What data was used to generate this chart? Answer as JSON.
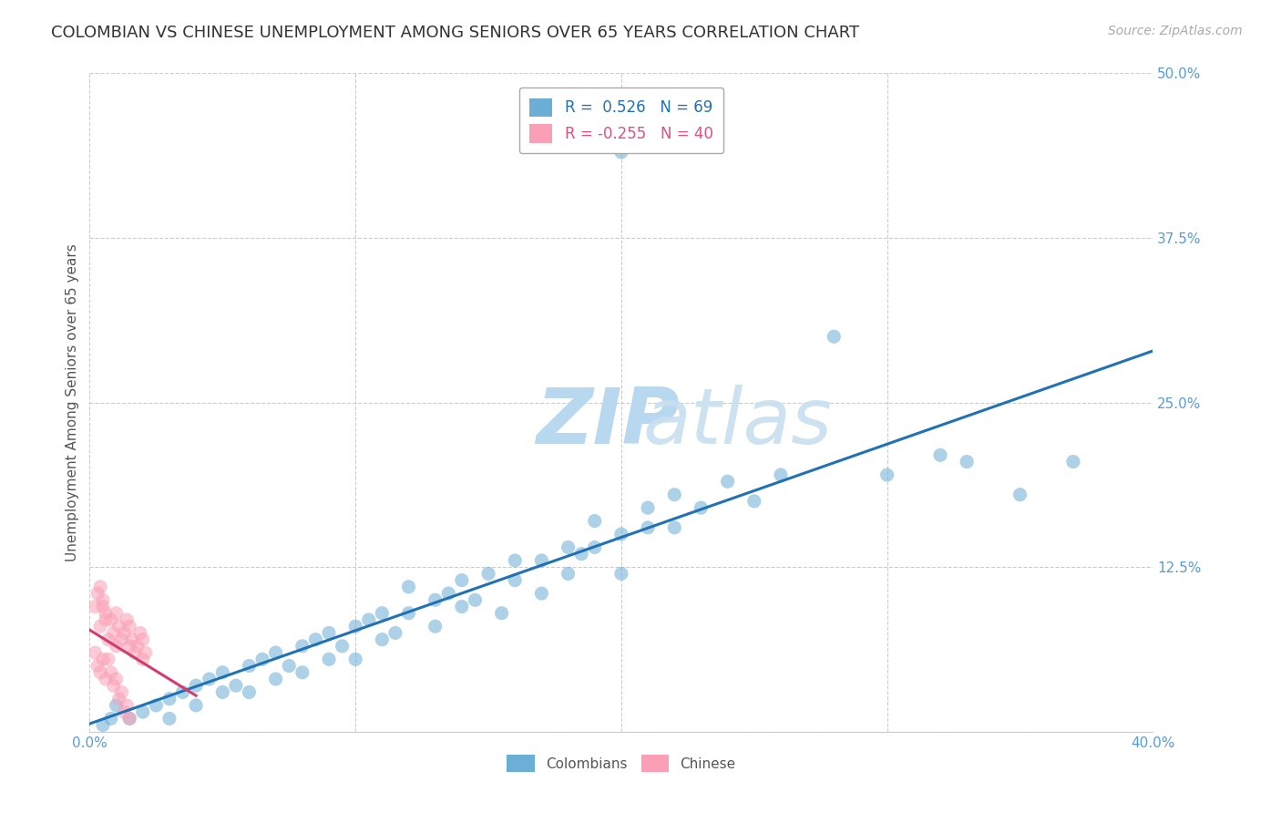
{
  "title": "COLOMBIAN VS CHINESE UNEMPLOYMENT AMONG SENIORS OVER 65 YEARS CORRELATION CHART",
  "source": "Source: ZipAtlas.com",
  "ylabel": "Unemployment Among Seniors over 65 years",
  "xlim": [
    0.0,
    0.4
  ],
  "ylim": [
    0.0,
    0.5
  ],
  "xticks": [
    0.0,
    0.1,
    0.2,
    0.3,
    0.4
  ],
  "yticks": [
    0.0,
    0.125,
    0.25,
    0.375,
    0.5
  ],
  "xticklabels": [
    "0.0%",
    "",
    "",
    "",
    "40.0%"
  ],
  "yticklabels": [
    "",
    "12.5%",
    "25.0%",
    "37.5%",
    "50.0%"
  ],
  "colombians_R": 0.526,
  "colombians_N": 69,
  "chinese_R": -0.255,
  "chinese_N": 40,
  "colombian_color": "#6baed6",
  "chinese_color": "#fa9fb5",
  "regression_colombian_color": "#2171b5",
  "regression_chinese_color": "#d63a6e",
  "background_color": "#ffffff",
  "grid_color": "#cccccc",
  "colombians_scatter": [
    [
      0.005,
      0.005
    ],
    [
      0.008,
      0.01
    ],
    [
      0.01,
      0.02
    ],
    [
      0.015,
      0.01
    ],
    [
      0.02,
      0.015
    ],
    [
      0.025,
      0.02
    ],
    [
      0.03,
      0.025
    ],
    [
      0.03,
      0.01
    ],
    [
      0.035,
      0.03
    ],
    [
      0.04,
      0.02
    ],
    [
      0.04,
      0.035
    ],
    [
      0.045,
      0.04
    ],
    [
      0.05,
      0.03
    ],
    [
      0.05,
      0.045
    ],
    [
      0.055,
      0.035
    ],
    [
      0.06,
      0.05
    ],
    [
      0.06,
      0.03
    ],
    [
      0.065,
      0.055
    ],
    [
      0.07,
      0.04
    ],
    [
      0.07,
      0.06
    ],
    [
      0.075,
      0.05
    ],
    [
      0.08,
      0.065
    ],
    [
      0.08,
      0.045
    ],
    [
      0.085,
      0.07
    ],
    [
      0.09,
      0.055
    ],
    [
      0.09,
      0.075
    ],
    [
      0.095,
      0.065
    ],
    [
      0.1,
      0.08
    ],
    [
      0.1,
      0.055
    ],
    [
      0.105,
      0.085
    ],
    [
      0.11,
      0.07
    ],
    [
      0.11,
      0.09
    ],
    [
      0.115,
      0.075
    ],
    [
      0.12,
      0.09
    ],
    [
      0.12,
      0.11
    ],
    [
      0.13,
      0.1
    ],
    [
      0.13,
      0.08
    ],
    [
      0.135,
      0.105
    ],
    [
      0.14,
      0.095
    ],
    [
      0.14,
      0.115
    ],
    [
      0.145,
      0.1
    ],
    [
      0.15,
      0.12
    ],
    [
      0.155,
      0.09
    ],
    [
      0.16,
      0.115
    ],
    [
      0.16,
      0.13
    ],
    [
      0.17,
      0.105
    ],
    [
      0.17,
      0.13
    ],
    [
      0.18,
      0.14
    ],
    [
      0.18,
      0.12
    ],
    [
      0.185,
      0.135
    ],
    [
      0.19,
      0.14
    ],
    [
      0.19,
      0.16
    ],
    [
      0.2,
      0.15
    ],
    [
      0.2,
      0.12
    ],
    [
      0.21,
      0.155
    ],
    [
      0.21,
      0.17
    ],
    [
      0.22,
      0.18
    ],
    [
      0.22,
      0.155
    ],
    [
      0.23,
      0.17
    ],
    [
      0.24,
      0.19
    ],
    [
      0.25,
      0.175
    ],
    [
      0.2,
      0.44
    ],
    [
      0.26,
      0.195
    ],
    [
      0.28,
      0.3
    ],
    [
      0.3,
      0.195
    ],
    [
      0.32,
      0.21
    ],
    [
      0.33,
      0.205
    ],
    [
      0.35,
      0.18
    ],
    [
      0.37,
      0.205
    ]
  ],
  "chinese_scatter": [
    [
      0.002,
      0.095
    ],
    [
      0.004,
      0.08
    ],
    [
      0.005,
      0.1
    ],
    [
      0.006,
      0.09
    ],
    [
      0.007,
      0.07
    ],
    [
      0.008,
      0.085
    ],
    [
      0.009,
      0.075
    ],
    [
      0.01,
      0.065
    ],
    [
      0.01,
      0.09
    ],
    [
      0.011,
      0.08
    ],
    [
      0.012,
      0.07
    ],
    [
      0.013,
      0.075
    ],
    [
      0.014,
      0.085
    ],
    [
      0.015,
      0.065
    ],
    [
      0.015,
      0.08
    ],
    [
      0.016,
      0.07
    ],
    [
      0.017,
      0.06
    ],
    [
      0.018,
      0.065
    ],
    [
      0.019,
      0.075
    ],
    [
      0.02,
      0.055
    ],
    [
      0.02,
      0.07
    ],
    [
      0.021,
      0.06
    ],
    [
      0.003,
      0.105
    ],
    [
      0.004,
      0.11
    ],
    [
      0.005,
      0.095
    ],
    [
      0.006,
      0.085
    ],
    [
      0.002,
      0.06
    ],
    [
      0.003,
      0.05
    ],
    [
      0.004,
      0.045
    ],
    [
      0.005,
      0.055
    ],
    [
      0.006,
      0.04
    ],
    [
      0.007,
      0.055
    ],
    [
      0.008,
      0.045
    ],
    [
      0.009,
      0.035
    ],
    [
      0.01,
      0.04
    ],
    [
      0.011,
      0.025
    ],
    [
      0.012,
      0.03
    ],
    [
      0.013,
      0.015
    ],
    [
      0.014,
      0.02
    ],
    [
      0.015,
      0.01
    ]
  ]
}
